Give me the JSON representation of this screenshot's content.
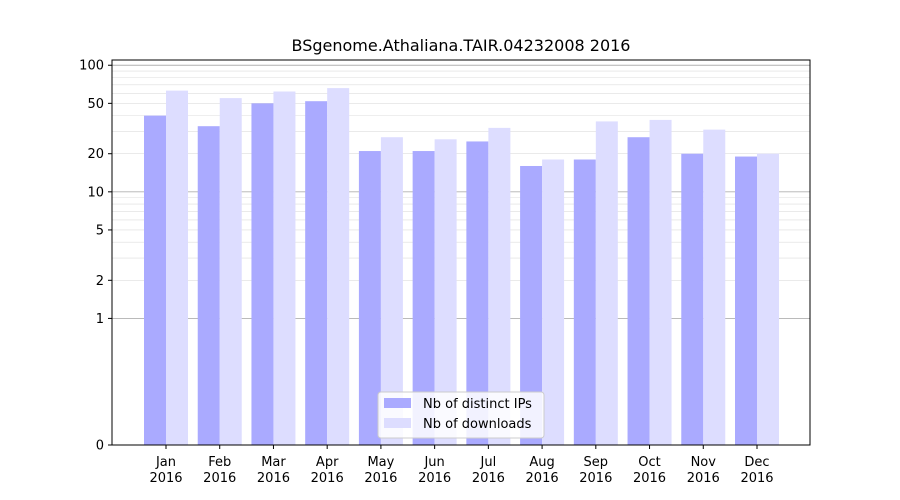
{
  "chart_data": {
    "type": "bar",
    "title": "BSgenome.Athaliana.TAIR.04232008 2016",
    "xlabel": "",
    "ylabel": "",
    "yscale": "symlog",
    "ylim": [
      0,
      110
    ],
    "yticks": [
      0,
      1,
      2,
      5,
      10,
      20,
      50,
      100
    ],
    "grid": true,
    "legend_position": "bottom-center",
    "categories": [
      {
        "month": "Jan",
        "year": "2016"
      },
      {
        "month": "Feb",
        "year": "2016"
      },
      {
        "month": "Mar",
        "year": "2016"
      },
      {
        "month": "Apr",
        "year": "2016"
      },
      {
        "month": "May",
        "year": "2016"
      },
      {
        "month": "Jun",
        "year": "2016"
      },
      {
        "month": "Jul",
        "year": "2016"
      },
      {
        "month": "Aug",
        "year": "2016"
      },
      {
        "month": "Sep",
        "year": "2016"
      },
      {
        "month": "Oct",
        "year": "2016"
      },
      {
        "month": "Nov",
        "year": "2016"
      },
      {
        "month": "Dec",
        "year": "2016"
      }
    ],
    "series": [
      {
        "name": "Nb of distinct IPs",
        "color": "#aaaaff",
        "values": [
          40,
          33,
          50,
          52,
          21,
          21,
          25,
          16,
          18,
          27,
          20,
          19
        ]
      },
      {
        "name": "Nb of downloads",
        "color": "#ddddff",
        "values": [
          63,
          55,
          62,
          66,
          27,
          26,
          32,
          18,
          36,
          37,
          31,
          20
        ]
      }
    ]
  }
}
